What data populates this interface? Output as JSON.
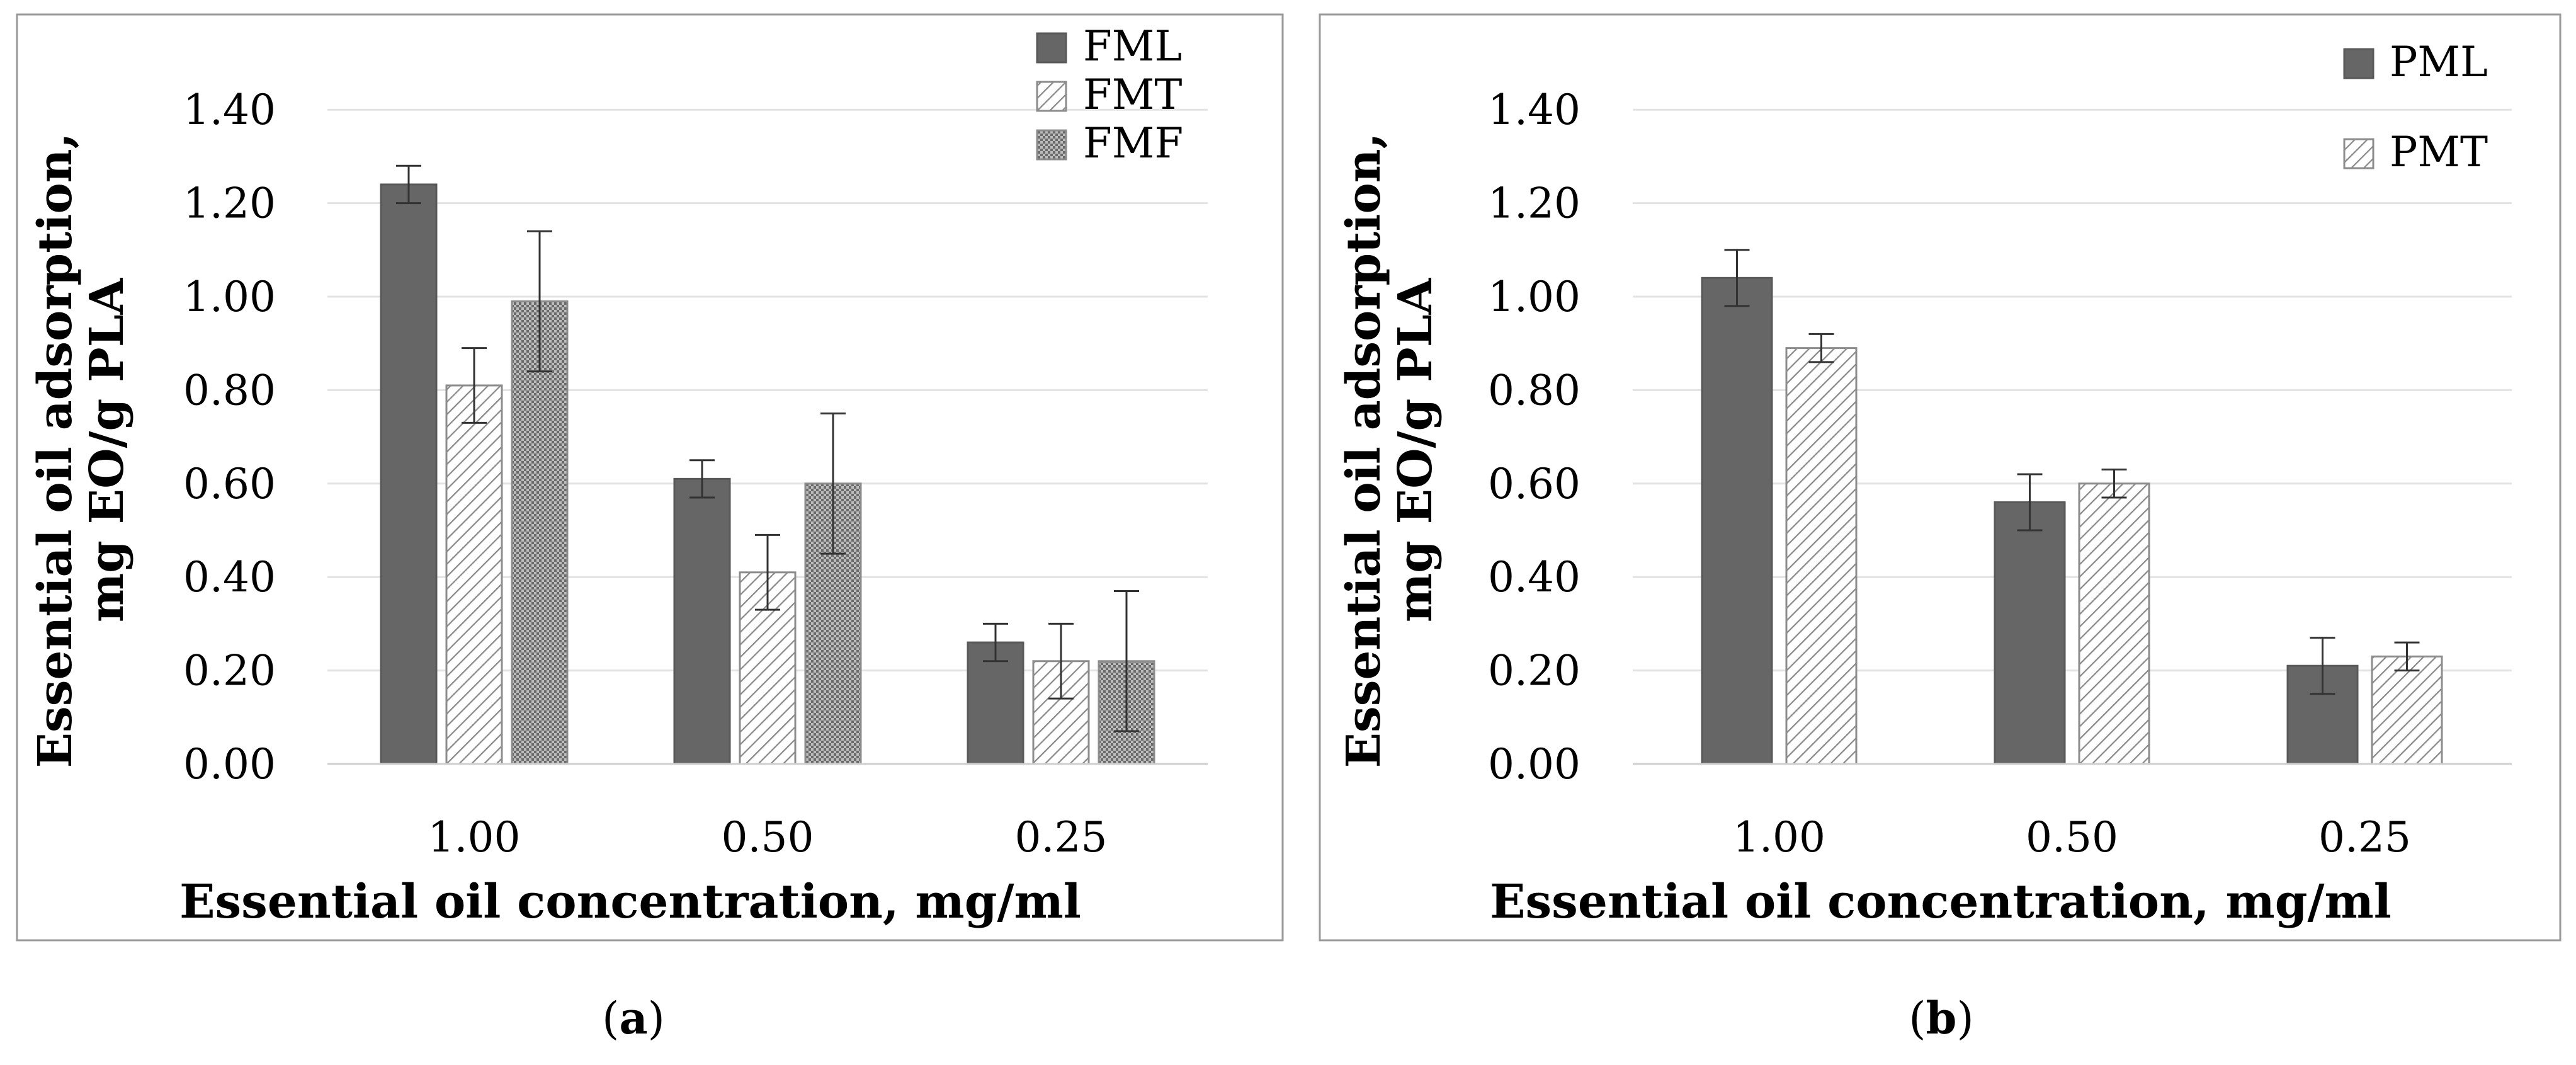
{
  "chart_data": [
    {
      "type": "bar",
      "panel_label": "a",
      "categories": [
        "1.00",
        "0.50",
        "0.25"
      ],
      "series": [
        {
          "name": "FML",
          "pattern": "solid",
          "values": [
            1.24,
            0.61,
            0.26
          ],
          "errors": [
            0.04,
            0.04,
            0.04
          ]
        },
        {
          "name": "FMT",
          "pattern": "diagonal-hatch",
          "values": [
            0.81,
            0.41,
            0.22
          ],
          "errors": [
            0.08,
            0.08,
            0.08
          ]
        },
        {
          "name": "FMF",
          "pattern": "crosshatch",
          "values": [
            0.99,
            0.6,
            0.22
          ],
          "errors": [
            0.15,
            0.15,
            0.15
          ]
        }
      ],
      "xlabel": "Essential oil concentration, mg/ml",
      "ylabel_line1": "Essential oil adsorption,",
      "ylabel_line2": "mg EO/g PLA",
      "ylim": [
        0,
        1.5
      ],
      "yticks": [
        "0.00",
        "0.20",
        "0.40",
        "0.60",
        "0.80",
        "1.00",
        "1.20",
        "1.40"
      ],
      "ytick_values": [
        0,
        0.2,
        0.4,
        0.6,
        0.8,
        1.0,
        1.2,
        1.4
      ],
      "legend_position": "top-right",
      "grid": true
    },
    {
      "type": "bar",
      "panel_label": "b",
      "categories": [
        "1.00",
        "0.50",
        "0.25"
      ],
      "series": [
        {
          "name": "PML",
          "pattern": "solid",
          "values": [
            1.04,
            0.56,
            0.21
          ],
          "errors": [
            0.06,
            0.06,
            0.06
          ]
        },
        {
          "name": "PMT",
          "pattern": "diagonal-hatch",
          "values": [
            0.89,
            0.6,
            0.23
          ],
          "errors": [
            0.03,
            0.03,
            0.03
          ]
        }
      ],
      "xlabel": "Essential oil concentration, mg/ml",
      "ylabel_line1": "Essential oil adsorption,",
      "ylabel_line2": "mg EO/g PLA",
      "ylim": [
        0,
        1.5
      ],
      "yticks": [
        "0.00",
        "0.20",
        "0.40",
        "0.60",
        "0.80",
        "1.00",
        "1.20",
        "1.40"
      ],
      "ytick_values": [
        0,
        0.2,
        0.4,
        0.6,
        0.8,
        1.0,
        1.2,
        1.4
      ],
      "legend_position": "top-right",
      "grid": true
    }
  ],
  "colors": {
    "bar_fill": "#666666",
    "bar_stroke": "#595959",
    "hatch_stroke": "#8c8c8c",
    "grid": "#e3e3e3",
    "axis": "#d4d4d4",
    "frame": "#9a9a9a",
    "error_bar": "#333333"
  }
}
